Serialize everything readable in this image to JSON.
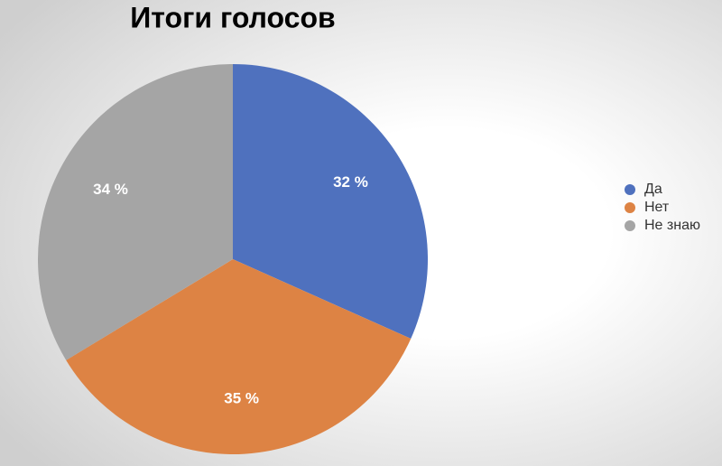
{
  "chart_data": {
    "type": "pie",
    "title": "Итоги голосов",
    "categories": [
      "Да",
      "Нет",
      "Не знаю"
    ],
    "values": [
      32,
      35,
      34
    ],
    "value_labels": [
      "32 %",
      "35 %",
      "34 %"
    ],
    "colors": [
      "#4f71be",
      "#dd8344",
      "#a5a5a5"
    ],
    "legend": "right"
  }
}
